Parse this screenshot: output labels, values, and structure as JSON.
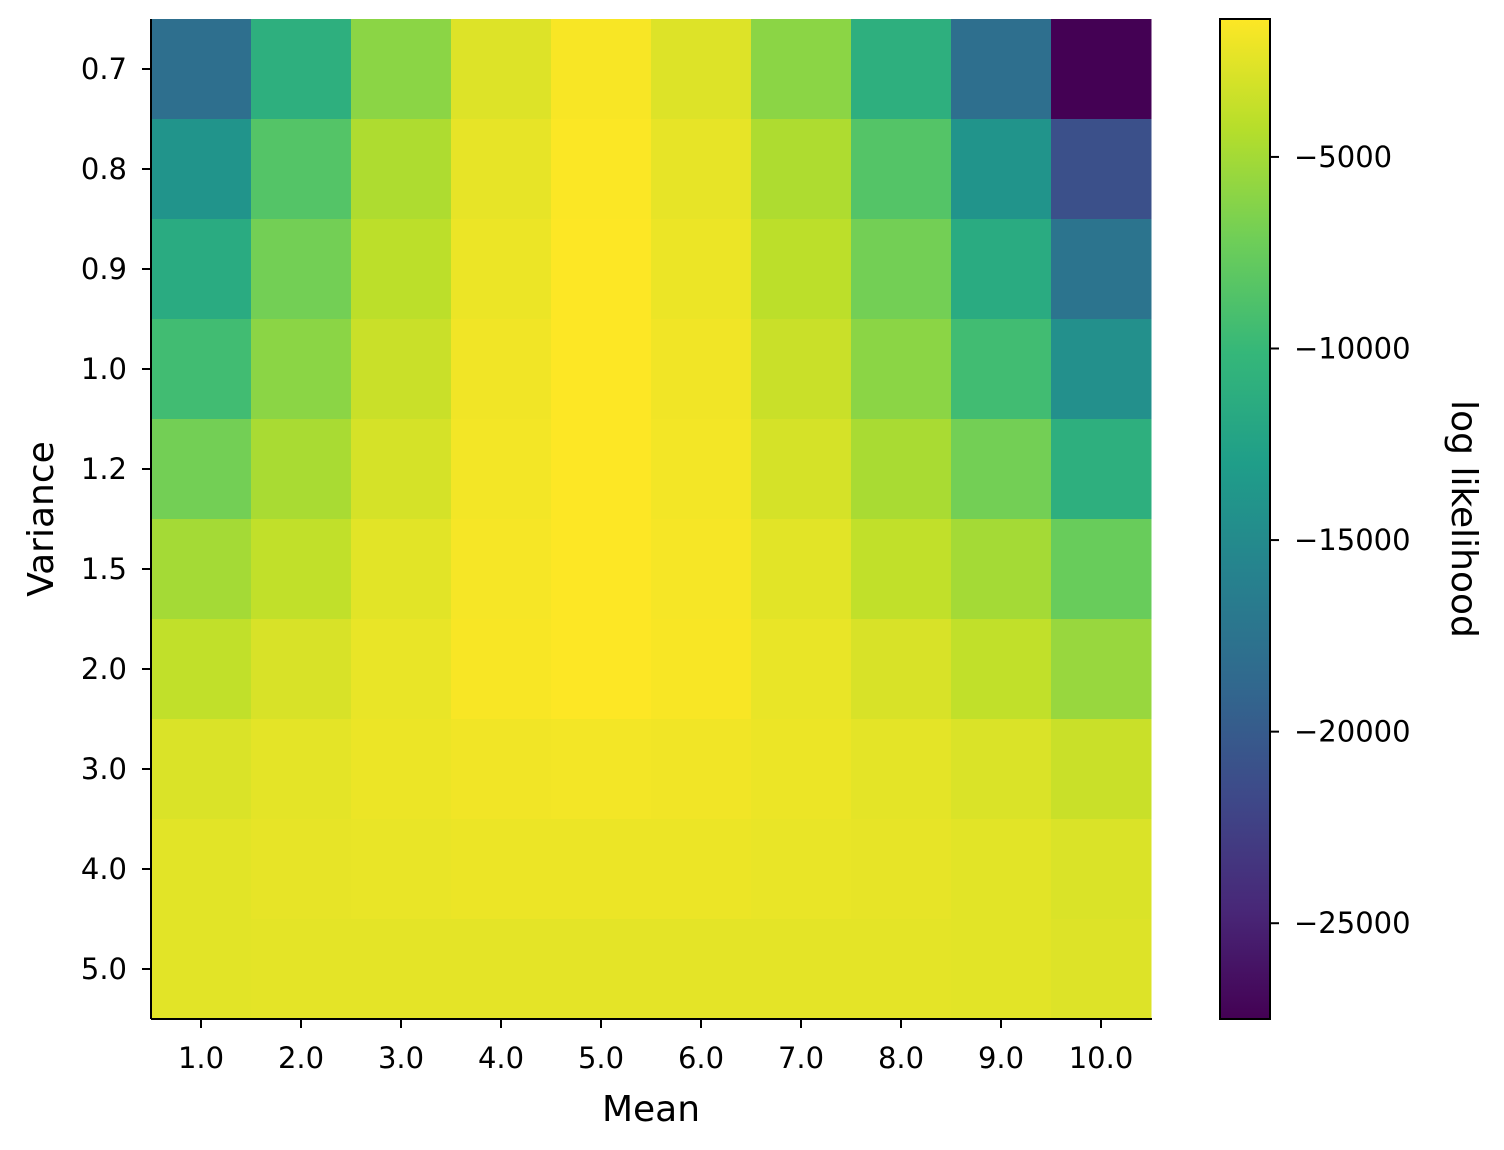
{
  "chart_data": {
    "type": "heatmap",
    "title": "",
    "xlabel": "Mean",
    "ylabel": "Variance",
    "x": [
      "1.0",
      "2.0",
      "3.0",
      "4.0",
      "5.0",
      "6.0",
      "7.0",
      "8.0",
      "9.0",
      "10.0"
    ],
    "y": [
      "0.7",
      "0.8",
      "0.9",
      "1.0",
      "1.2",
      "1.5",
      "2.0",
      "3.0",
      "4.0",
      "5.0"
    ],
    "values": [
      [
        -18000,
        -11000,
        -6000,
        -2700,
        -1600,
        -2700,
        -6000,
        -11000,
        -18000,
        -27500
      ],
      [
        -14000,
        -8500,
        -4600,
        -2300,
        -1500,
        -2300,
        -4600,
        -8500,
        -14000,
        -21000
      ],
      [
        -11500,
        -7000,
        -4000,
        -2100,
        -1400,
        -2100,
        -4000,
        -7000,
        -11500,
        -17500
      ],
      [
        -9500,
        -6000,
        -3500,
        -1900,
        -1300,
        -1900,
        -3500,
        -6000,
        -9500,
        -14500
      ],
      [
        -7000,
        -4800,
        -3000,
        -1800,
        -1300,
        -1800,
        -3000,
        -4800,
        -7000,
        -11000
      ],
      [
        -5000,
        -3800,
        -2500,
        -1700,
        -1300,
        -1700,
        -2500,
        -3800,
        -5000,
        -7500
      ],
      [
        -3800,
        -2900,
        -2200,
        -1600,
        -1400,
        -1600,
        -2200,
        -2900,
        -3800,
        -5500
      ],
      [
        -2800,
        -2400,
        -2100,
        -1900,
        -1800,
        -1900,
        -2100,
        -2400,
        -2800,
        -3500
      ],
      [
        -2500,
        -2300,
        -2200,
        -2100,
        -2100,
        -2100,
        -2200,
        -2300,
        -2500,
        -2800
      ],
      [
        -2500,
        -2400,
        -2400,
        -2400,
        -2400,
        -2400,
        -2400,
        -2400,
        -2500,
        -2700
      ]
    ],
    "colorbar": {
      "label": "log likelihood",
      "ticks": [
        -5000,
        -10000,
        -15000,
        -20000,
        -25000
      ],
      "tick_labels": [
        "−5000",
        "−10000",
        "−15000",
        "−20000",
        "−25000"
      ],
      "range": [
        -27500,
        -1400
      ],
      "colormap": "viridis",
      "colormap_stops": [
        "#440154",
        "#482878",
        "#3e4989",
        "#31688e",
        "#26828e",
        "#1f9e89",
        "#35b779",
        "#6ece58",
        "#b5de2b",
        "#fde725"
      ]
    },
    "grid": false,
    "legend": "none"
  }
}
